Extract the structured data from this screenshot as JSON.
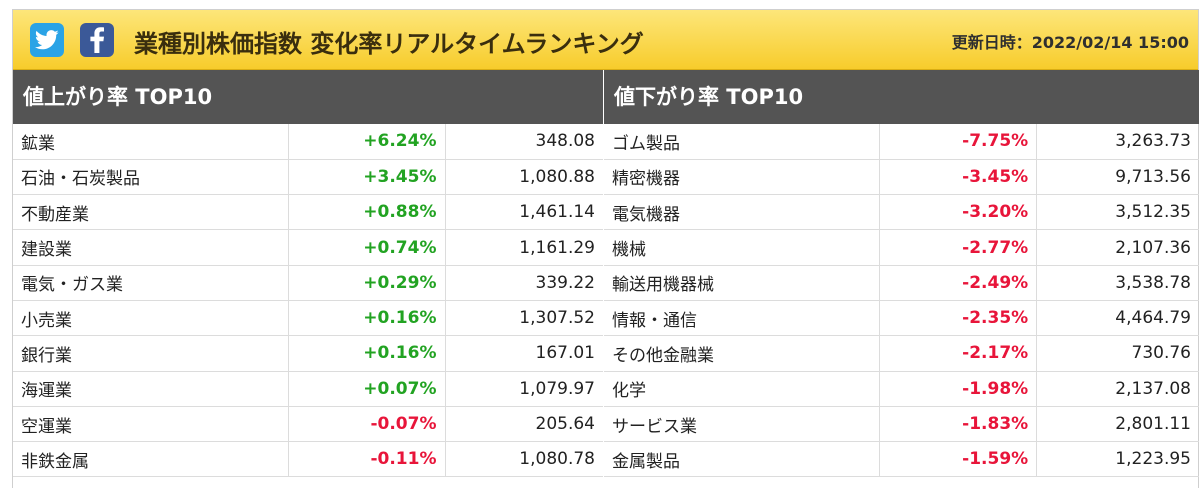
{
  "header": {
    "title": "業種別株価指数 変化率リアルタイムランキング",
    "updated": "更新日時：2022/02/14 15:00",
    "icons": [
      "twitter-icon",
      "facebook-icon"
    ],
    "colors": {
      "banner": "#f9d640",
      "table_header": "#545454",
      "up": "#22a322",
      "down": "#e8153a"
    }
  },
  "gainers": {
    "heading": "値上がり率 TOP10",
    "rows": [
      {
        "name": "鉱業",
        "rate": "+6.24%",
        "price": "348.08",
        "dir": "up"
      },
      {
        "name": "石油・石炭製品",
        "rate": "+3.45%",
        "price": "1,080.88",
        "dir": "up"
      },
      {
        "name": "不動産業",
        "rate": "+0.88%",
        "price": "1,461.14",
        "dir": "up"
      },
      {
        "name": "建設業",
        "rate": "+0.74%",
        "price": "1,161.29",
        "dir": "up"
      },
      {
        "name": "電気・ガス業",
        "rate": "+0.29%",
        "price": "339.22",
        "dir": "up"
      },
      {
        "name": "小売業",
        "rate": "+0.16%",
        "price": "1,307.52",
        "dir": "up"
      },
      {
        "name": "銀行業",
        "rate": "+0.16%",
        "price": "167.01",
        "dir": "up"
      },
      {
        "name": "海運業",
        "rate": "+0.07%",
        "price": "1,079.97",
        "dir": "up"
      },
      {
        "name": "空運業",
        "rate": "-0.07%",
        "price": "205.64",
        "dir": "down"
      },
      {
        "name": "非鉄金属",
        "rate": "-0.11%",
        "price": "1,080.78",
        "dir": "down"
      }
    ]
  },
  "losers": {
    "heading": "値下がり率 TOP10",
    "rows": [
      {
        "name": "ゴム製品",
        "rate": "-7.75%",
        "price": "3,263.73",
        "dir": "down"
      },
      {
        "name": "精密機器",
        "rate": "-3.45%",
        "price": "9,713.56",
        "dir": "down"
      },
      {
        "name": "電気機器",
        "rate": "-3.20%",
        "price": "3,512.35",
        "dir": "down"
      },
      {
        "name": "機械",
        "rate": "-2.77%",
        "price": "2,107.36",
        "dir": "down"
      },
      {
        "name": "輸送用機器械",
        "rate": "-2.49%",
        "price": "3,538.78",
        "dir": "down"
      },
      {
        "name": "情報・通信",
        "rate": "-2.35%",
        "price": "4,464.79",
        "dir": "down"
      },
      {
        "name": "その他金融業",
        "rate": "-2.17%",
        "price": "730.76",
        "dir": "down"
      },
      {
        "name": "化学",
        "rate": "-1.98%",
        "price": "2,137.08",
        "dir": "down"
      },
      {
        "name": "サービス業",
        "rate": "-1.83%",
        "price": "2,801.11",
        "dir": "down"
      },
      {
        "name": "金属製品",
        "rate": "-1.59%",
        "price": "1,223.95",
        "dir": "down"
      }
    ]
  }
}
